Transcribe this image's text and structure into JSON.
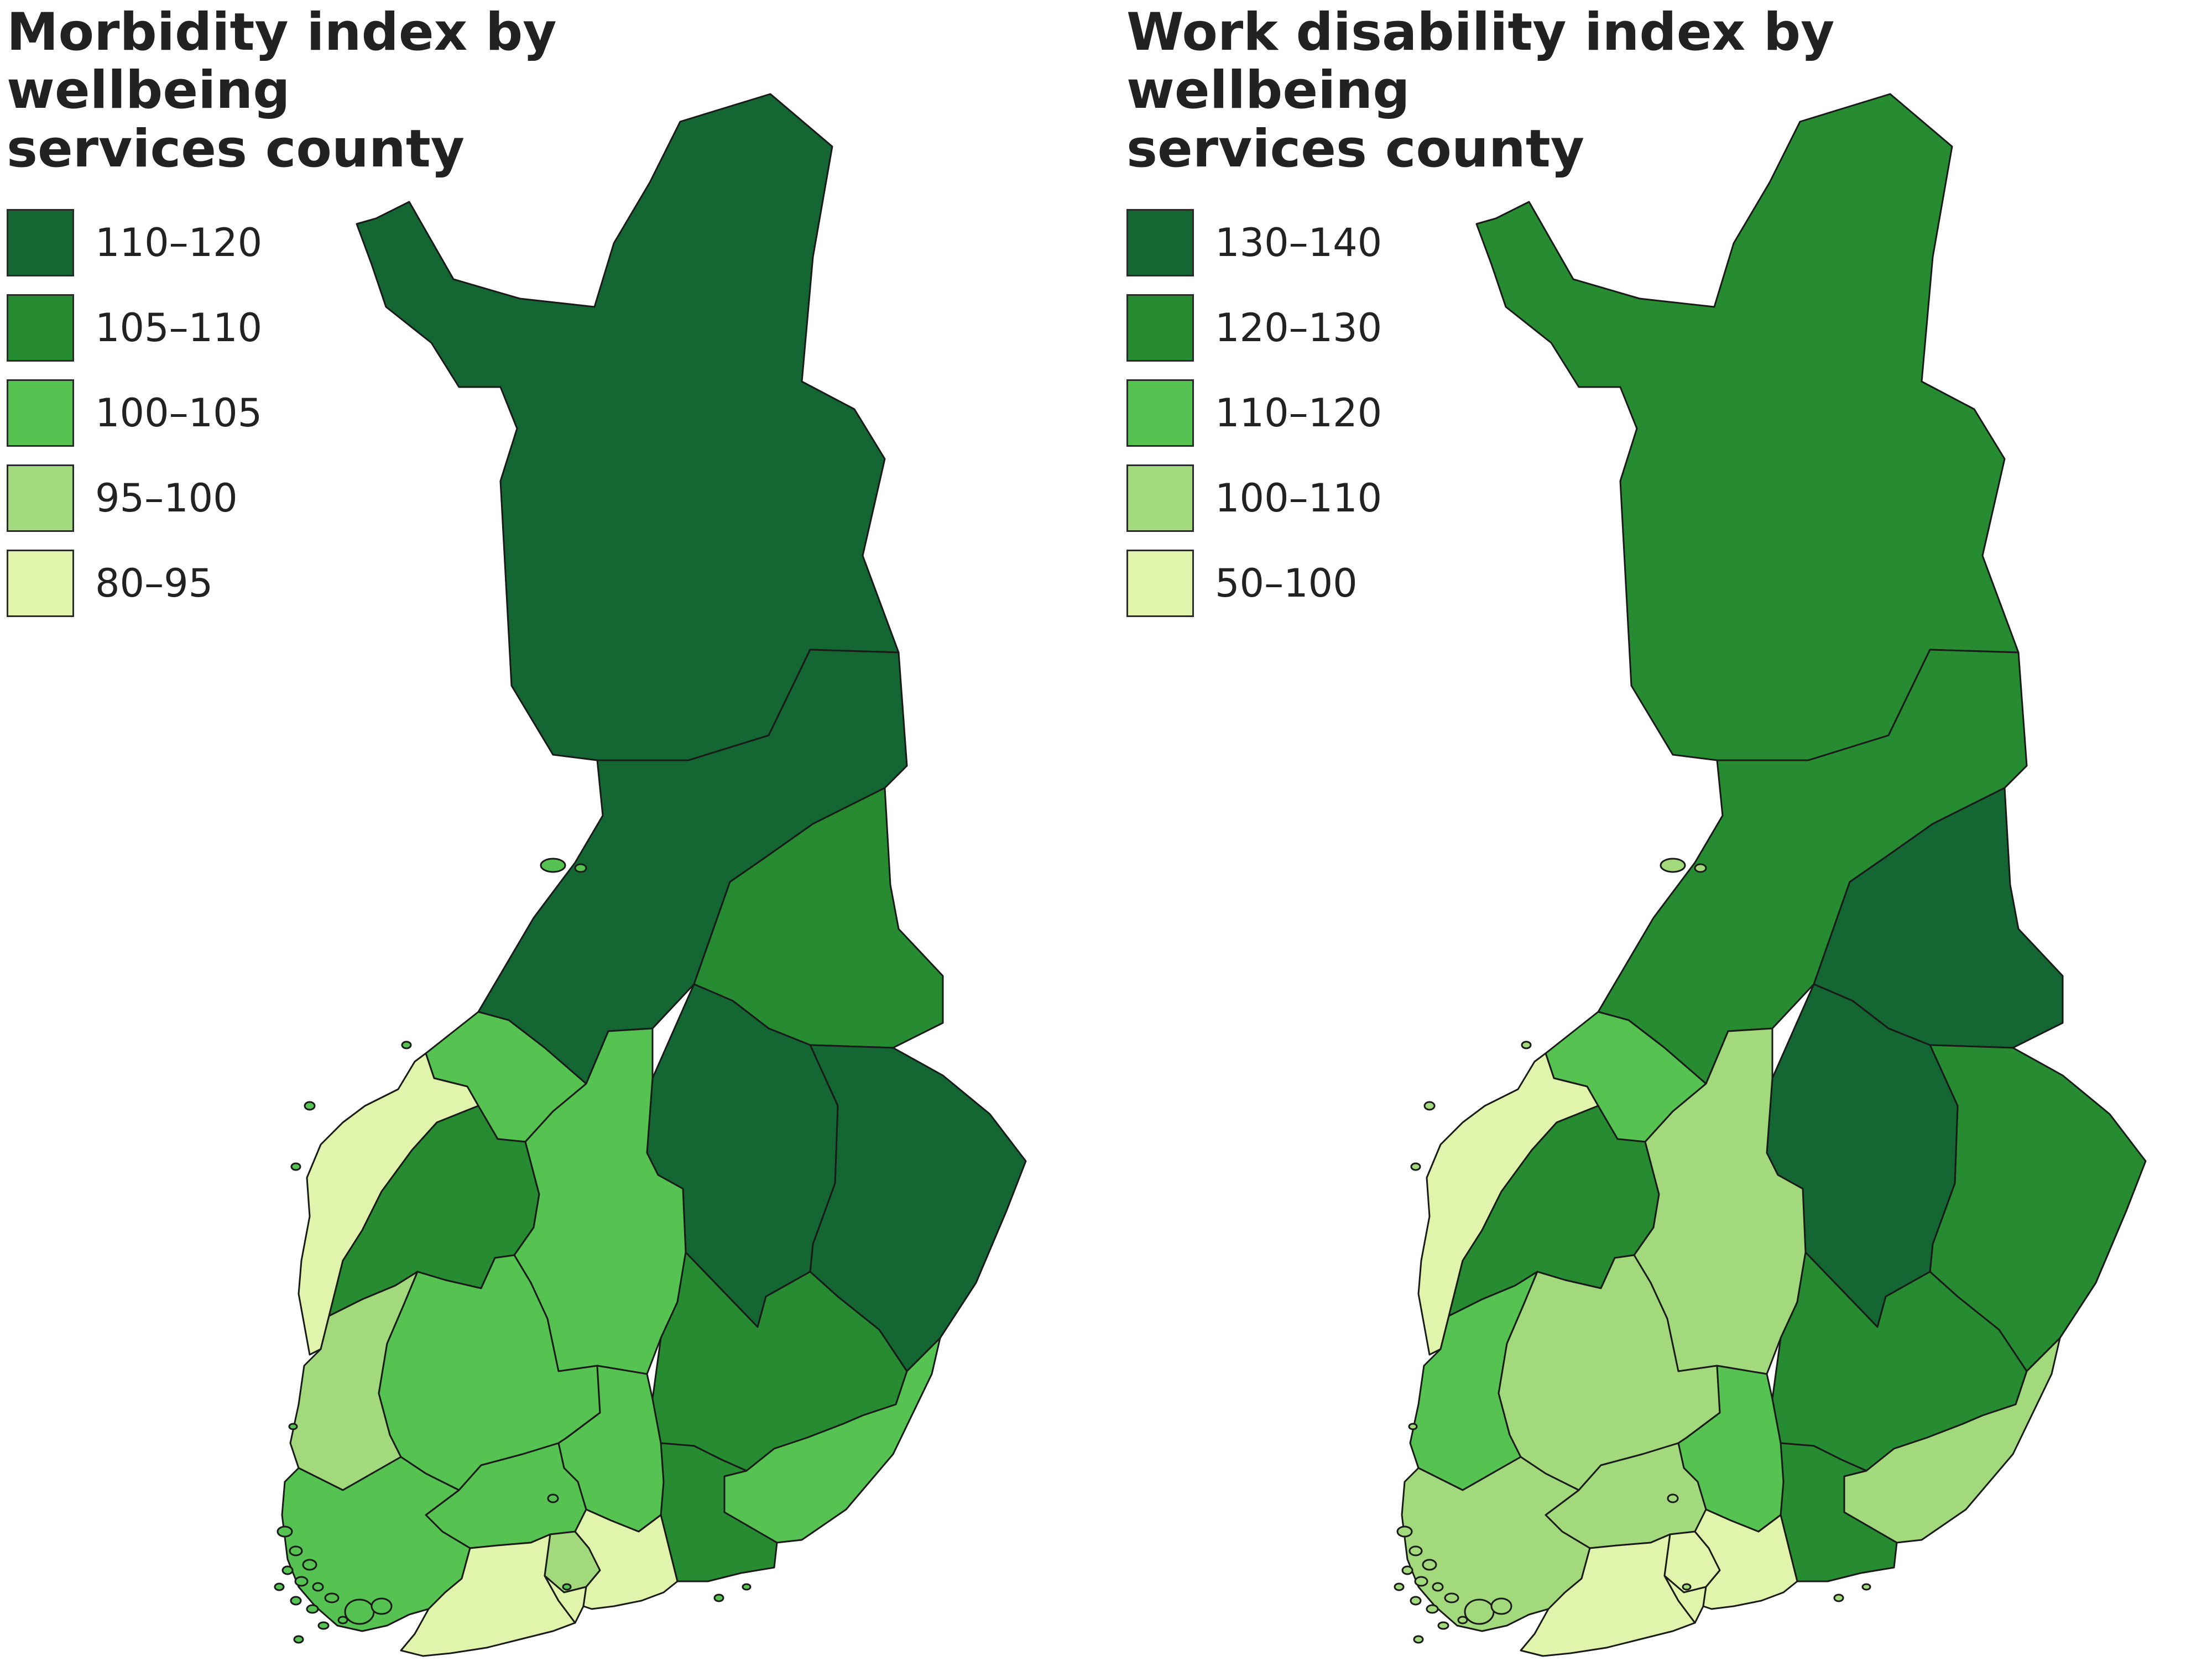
{
  "colors": {
    "c1": "#146632",
    "c2": "#278b32",
    "c3": "#56c251",
    "c4": "#a2d97c",
    "c5": "#e0f4ab"
  },
  "maps": [
    {
      "title_line1": "Morbidity index by wellbeing",
      "title_line2": "services county",
      "legend": [
        {
          "label": "110–120",
          "class": "c1"
        },
        {
          "label": "105–110",
          "class": "c2"
        },
        {
          "label": "100–105",
          "class": "c3"
        },
        {
          "label": "95–100",
          "class": "c4"
        },
        {
          "label": "80–95",
          "class": "c5"
        }
      ],
      "regions": {
        "lapland": "c1",
        "north_ostrobothnia": "c1",
        "kainuu": "c2",
        "north_karelia": "c1",
        "north_savo": "c1",
        "central_ostrobothnia": "c3",
        "ostrobothnia": "c5",
        "south_ostrobothnia": "c2",
        "central_finland": "c3",
        "south_savo": "c2",
        "satakunta": "c4",
        "pirkanmaa": "c3",
        "south_karelia": "c3",
        "kymenlaakso": "c2",
        "paijat_hame": "c3",
        "kanta_hame": "c3",
        "southwest_finland": "c3",
        "uusimaa_west": "c5",
        "vantaa_kerava": "c4",
        "helsinki": "c5",
        "east_uusimaa": "c5",
        "aland": "c3"
      }
    },
    {
      "title_line1": "Work disability index by wellbeing",
      "title_line2": "services county",
      "legend": [
        {
          "label": "130–140",
          "class": "c1"
        },
        {
          "label": "120–130",
          "class": "c2"
        },
        {
          "label": "110–120",
          "class": "c3"
        },
        {
          "label": "100–110",
          "class": "c4"
        },
        {
          "label": "50–100",
          "class": "c5"
        }
      ],
      "regions": {
        "lapland": "c2",
        "north_ostrobothnia": "c2",
        "kainuu": "c1",
        "north_karelia": "c2",
        "north_savo": "c1",
        "central_ostrobothnia": "c3",
        "ostrobothnia": "c5",
        "south_ostrobothnia": "c2",
        "central_finland": "c4",
        "south_savo": "c2",
        "satakunta": "c3",
        "pirkanmaa": "c4",
        "south_karelia": "c4",
        "kymenlaakso": "c2",
        "paijat_hame": "c3",
        "kanta_hame": "c4",
        "southwest_finland": "c4",
        "uusimaa_west": "c5",
        "vantaa_kerava": "c5",
        "helsinki": "c5",
        "east_uusimaa": "c5",
        "aland": "c4"
      }
    }
  ]
}
